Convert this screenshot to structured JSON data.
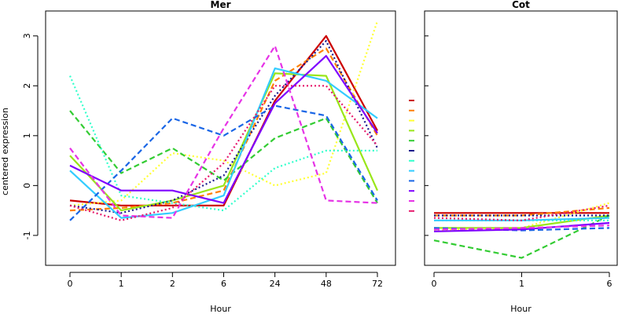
{
  "chart_data": [
    {
      "type": "line",
      "title": "Mer",
      "xlabel": "Hour",
      "ylabel": "centered expression",
      "categories": [
        "0",
        "1",
        "2",
        "6",
        "24",
        "48",
        "72"
      ],
      "ylim": [
        -1.6,
        3.5
      ],
      "yticks": [
        -1,
        0,
        1,
        2,
        3
      ],
      "grid": false,
      "series": [
        {
          "color": "#cc0000",
          "dash": "solid",
          "values": [
            -0.3,
            -0.4,
            -0.4,
            -0.4,
            1.7,
            3.0,
            1.1
          ]
        },
        {
          "color": "#ff8000",
          "dash": "dashed",
          "values": [
            -0.5,
            -0.45,
            -0.35,
            -0.1,
            2.1,
            2.75,
            1.0
          ]
        },
        {
          "color": "#ffff33",
          "dash": "dotted",
          "values": [
            -0.4,
            -0.3,
            0.65,
            0.5,
            0.0,
            0.25,
            3.3
          ]
        },
        {
          "color": "#99e619",
          "dash": "solid",
          "values": [
            0.6,
            -0.5,
            -0.3,
            0.0,
            2.25,
            2.2,
            -0.1
          ]
        },
        {
          "color": "#33cc33",
          "dash": "dashed",
          "values": [
            1.5,
            0.25,
            0.75,
            0.1,
            0.95,
            1.35,
            -0.35
          ]
        },
        {
          "color": "#1a1a8c",
          "dash": "dotted",
          "values": [
            -0.4,
            -0.55,
            -0.3,
            0.2,
            1.8,
            2.9,
            0.75
          ]
        },
        {
          "color": "#33ffcc",
          "dash": "dotted",
          "values": [
            2.2,
            -0.2,
            -0.35,
            -0.5,
            0.35,
            0.7,
            0.7
          ]
        },
        {
          "color": "#33ccff",
          "dash": "solid",
          "values": [
            0.3,
            -0.65,
            -0.55,
            -0.2,
            2.35,
            2.1,
            1.35
          ]
        },
        {
          "color": "#1a66e6",
          "dash": "dashed",
          "values": [
            -0.7,
            0.3,
            1.35,
            1.0,
            1.6,
            1.4,
            -0.3
          ]
        },
        {
          "color": "#7f00ff",
          "dash": "solid",
          "values": [
            0.4,
            -0.1,
            -0.1,
            -0.35,
            1.65,
            2.6,
            1.05
          ]
        },
        {
          "color": "#e633e6",
          "dash": "dashed",
          "values": [
            0.75,
            -0.6,
            -0.65,
            1.15,
            2.8,
            -0.3,
            -0.35
          ]
        },
        {
          "color": "#e6196b",
          "dash": "dotted",
          "values": [
            -0.4,
            -0.7,
            -0.45,
            0.45,
            2.0,
            2.0,
            0.8
          ]
        }
      ]
    },
    {
      "type": "line",
      "title": "Cot",
      "xlabel": "Hour",
      "ylabel": "",
      "categories": [
        "0",
        "1",
        "6"
      ],
      "ylim": [
        -1.6,
        3.5
      ],
      "yticks": [
        -1,
        0,
        1,
        2,
        3
      ],
      "grid": false,
      "series": [
        {
          "color": "#cc0000",
          "dash": "solid",
          "values": [
            -0.55,
            -0.55,
            -0.55
          ]
        },
        {
          "color": "#ff8000",
          "dash": "dashed",
          "values": [
            -0.6,
            -0.6,
            -0.45
          ]
        },
        {
          "color": "#ffff33",
          "dash": "dotted",
          "values": [
            -0.9,
            -0.85,
            -0.35
          ]
        },
        {
          "color": "#99e619",
          "dash": "solid",
          "values": [
            -0.85,
            -0.85,
            -0.6
          ]
        },
        {
          "color": "#33cc33",
          "dash": "dashed",
          "values": [
            -1.1,
            -1.45,
            -0.6
          ]
        },
        {
          "color": "#1a1a8c",
          "dash": "dotted",
          "values": [
            -0.6,
            -0.6,
            -0.6
          ]
        },
        {
          "color": "#33ffcc",
          "dash": "dotted",
          "values": [
            -0.7,
            -0.7,
            -0.7
          ]
        },
        {
          "color": "#33ccff",
          "dash": "solid",
          "values": [
            -0.7,
            -0.7,
            -0.65
          ]
        },
        {
          "color": "#1a66e6",
          "dash": "dashed",
          "values": [
            -0.85,
            -0.9,
            -0.85
          ]
        },
        {
          "color": "#7f00ff",
          "dash": "solid",
          "values": [
            -0.92,
            -0.88,
            -0.75
          ]
        },
        {
          "color": "#e633e6",
          "dash": "dashed",
          "values": [
            -0.88,
            -0.85,
            -0.8
          ]
        },
        {
          "color": "#e6196b",
          "dash": "dotted",
          "values": [
            -0.65,
            -0.7,
            -0.4
          ]
        }
      ]
    }
  ]
}
